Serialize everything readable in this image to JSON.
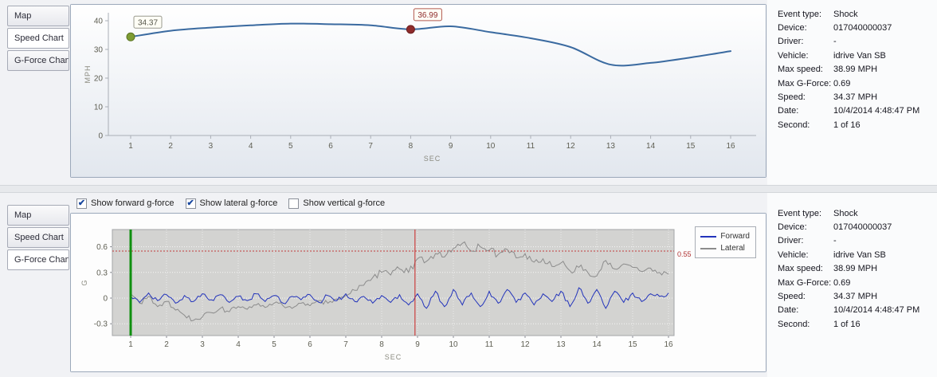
{
  "tabs": [
    "Map",
    "Speed Chart",
    "G-Force Chart"
  ],
  "top": {
    "selected_tab": "Speed Chart"
  },
  "bottom": {
    "selected_tab": "G-Force Chart",
    "checkboxes": [
      {
        "label": "Show forward g-force",
        "checked": true
      },
      {
        "label": "Show lateral g-force",
        "checked": true
      },
      {
        "label": "Show vertical g-force",
        "checked": false
      }
    ]
  },
  "info": {
    "rows": [
      {
        "label": "Event type:",
        "value": "Shock"
      },
      {
        "label": "Device:",
        "value": "017040000037"
      },
      {
        "label": "Driver:",
        "value": "-"
      },
      {
        "label": "Vehicle:",
        "value": "idrive Van SB"
      },
      {
        "label": "Max speed:",
        "value": "38.99 MPH"
      },
      {
        "label": "Max G-Force:",
        "value": "0.69"
      },
      {
        "label": "Speed:",
        "value": "34.37 MPH"
      },
      {
        "label": "Date:",
        "value": "10/4/2014 4:48:47 PM"
      },
      {
        "label": "Second:",
        "value": "1 of 16"
      }
    ]
  },
  "chart_data": [
    {
      "type": "line",
      "title": "Speed Chart",
      "xlabel": "SEC",
      "ylabel": "MPH",
      "x": [
        1,
        2,
        3,
        4,
        5,
        6,
        7,
        8,
        9,
        10,
        11,
        12,
        13,
        14,
        15,
        16
      ],
      "values": [
        34.37,
        36.5,
        37.6,
        38.4,
        38.99,
        38.8,
        38.4,
        36.99,
        38.05,
        36.0,
        33.9,
        30.8,
        24.7,
        25.3,
        27.2,
        29.4
      ],
      "ylim": [
        0,
        43
      ],
      "yticks": [
        0,
        10,
        20,
        30,
        40
      ],
      "grid": false,
      "line_color": "#3a6aa0",
      "markers": [
        {
          "x": 1,
          "y": 34.37,
          "label": "34.37",
          "fill": "#7e9c33",
          "stroke": "#5a7423",
          "label_color": "#55554a",
          "box_border": "#9a9a8e"
        },
        {
          "x": 8,
          "y": 36.99,
          "label": "36.99",
          "fill": "#8f2b2b",
          "stroke": "#6d1f1f",
          "label_color": "#8f2b2b",
          "box_border": "#b2594f"
        }
      ]
    },
    {
      "type": "line",
      "title": "G-Force Chart",
      "xlabel": "SEC",
      "ylabel": "G",
      "x_start": 1,
      "x_step": 0.25,
      "xticks": [
        1,
        2,
        3,
        4,
        5,
        6,
        7,
        8,
        9,
        10,
        11,
        12,
        13,
        14,
        15,
        16
      ],
      "ylim": [
        -0.44,
        0.8
      ],
      "yticks": [
        -0.3,
        0,
        0.3,
        0.6
      ],
      "grid": true,
      "legend_position": "right",
      "threshold": {
        "value": 0.55,
        "label": "0.55",
        "color": "#c23b3b"
      },
      "marker_lines": [
        {
          "name": "start-marker",
          "x": 1,
          "color": "#0f8f0f",
          "width": 3
        },
        {
          "name": "event-marker",
          "x": 8.93,
          "color": "#cc2222",
          "width": 1
        }
      ],
      "series": [
        {
          "name": "Forward",
          "color": "#2233bb",
          "values": [
            0.02,
            -0.05,
            0.06,
            -0.03,
            0.04,
            -0.06,
            0.03,
            -0.04,
            0.05,
            -0.02,
            0.04,
            -0.05,
            0.02,
            -0.03,
            0.05,
            -0.04,
            0.03,
            -0.06,
            0.02,
            -0.02,
            0.04,
            -0.05,
            0.03,
            -0.03,
            0.05,
            -0.04,
            0.02,
            -0.06,
            0.03,
            -0.05,
            0.04,
            -0.08,
            0.05,
            -0.12,
            0.08,
            -0.1,
            0.1,
            -0.08,
            0.06,
            -0.1,
            0.08,
            -0.06,
            0.1,
            -0.05,
            0.06,
            -0.08,
            0.05,
            -0.04,
            0.08,
            -0.1,
            0.12,
            -0.06,
            0.1,
            -0.12,
            0.08,
            -0.05,
            0.06,
            -0.04,
            0.05,
            0.02,
            0.06
          ]
        },
        {
          "name": "Lateral",
          "color": "#8c8c8c",
          "values": [
            0.05,
            -0.06,
            0.02,
            -0.1,
            -0.04,
            -0.14,
            -0.2,
            -0.26,
            -0.22,
            -0.17,
            -0.12,
            -0.16,
            -0.1,
            -0.13,
            -0.08,
            -0.11,
            -0.06,
            -0.09,
            -0.12,
            -0.06,
            -0.09,
            -0.03,
            -0.06,
            -0.01,
            0.03,
            0.09,
            0.15,
            0.24,
            0.3,
            0.27,
            0.34,
            0.3,
            0.46,
            0.43,
            0.52,
            0.48,
            0.58,
            0.64,
            0.55,
            0.6,
            0.56,
            0.51,
            0.57,
            0.47,
            0.52,
            0.42,
            0.46,
            0.37,
            0.41,
            0.32,
            0.36,
            0.3,
            0.26,
            0.44,
            0.34,
            0.4,
            0.36,
            0.31,
            0.35,
            0.3,
            0.28
          ]
        }
      ]
    }
  ]
}
